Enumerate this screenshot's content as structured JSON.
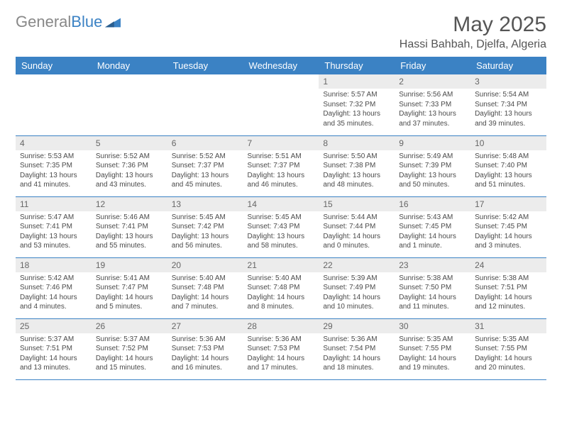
{
  "logo": {
    "text_part1": "General",
    "text_part2": "Blue"
  },
  "title": "May 2025",
  "location": "Hassi Bahbah, Djelfa, Algeria",
  "colors": {
    "header_bg": "#3b82c4",
    "header_text": "#ffffff",
    "day_number_bg": "#ececec",
    "body_text": "#4a4a4a",
    "row_divider": "#3b82c4",
    "logo_gray": "#888888",
    "logo_blue": "#3b82c4"
  },
  "typography": {
    "title_fontsize": 30,
    "location_fontsize": 16,
    "header_fontsize": 13,
    "day_number_fontsize": 12,
    "cell_fontsize": 10
  },
  "layout": {
    "columns": 7,
    "rows": 5,
    "first_day_column_index": 4
  },
  "weekdays": [
    "Sunday",
    "Monday",
    "Tuesday",
    "Wednesday",
    "Thursday",
    "Friday",
    "Saturday"
  ],
  "days": [
    {
      "n": 1,
      "sunrise": "5:57 AM",
      "sunset": "7:32 PM",
      "daylight": "13 hours and 35 minutes."
    },
    {
      "n": 2,
      "sunrise": "5:56 AM",
      "sunset": "7:33 PM",
      "daylight": "13 hours and 37 minutes."
    },
    {
      "n": 3,
      "sunrise": "5:54 AM",
      "sunset": "7:34 PM",
      "daylight": "13 hours and 39 minutes."
    },
    {
      "n": 4,
      "sunrise": "5:53 AM",
      "sunset": "7:35 PM",
      "daylight": "13 hours and 41 minutes."
    },
    {
      "n": 5,
      "sunrise": "5:52 AM",
      "sunset": "7:36 PM",
      "daylight": "13 hours and 43 minutes."
    },
    {
      "n": 6,
      "sunrise": "5:52 AM",
      "sunset": "7:37 PM",
      "daylight": "13 hours and 45 minutes."
    },
    {
      "n": 7,
      "sunrise": "5:51 AM",
      "sunset": "7:37 PM",
      "daylight": "13 hours and 46 minutes."
    },
    {
      "n": 8,
      "sunrise": "5:50 AM",
      "sunset": "7:38 PM",
      "daylight": "13 hours and 48 minutes."
    },
    {
      "n": 9,
      "sunrise": "5:49 AM",
      "sunset": "7:39 PM",
      "daylight": "13 hours and 50 minutes."
    },
    {
      "n": 10,
      "sunrise": "5:48 AM",
      "sunset": "7:40 PM",
      "daylight": "13 hours and 51 minutes."
    },
    {
      "n": 11,
      "sunrise": "5:47 AM",
      "sunset": "7:41 PM",
      "daylight": "13 hours and 53 minutes."
    },
    {
      "n": 12,
      "sunrise": "5:46 AM",
      "sunset": "7:41 PM",
      "daylight": "13 hours and 55 minutes."
    },
    {
      "n": 13,
      "sunrise": "5:45 AM",
      "sunset": "7:42 PM",
      "daylight": "13 hours and 56 minutes."
    },
    {
      "n": 14,
      "sunrise": "5:45 AM",
      "sunset": "7:43 PM",
      "daylight": "13 hours and 58 minutes."
    },
    {
      "n": 15,
      "sunrise": "5:44 AM",
      "sunset": "7:44 PM",
      "daylight": "14 hours and 0 minutes."
    },
    {
      "n": 16,
      "sunrise": "5:43 AM",
      "sunset": "7:45 PM",
      "daylight": "14 hours and 1 minute."
    },
    {
      "n": 17,
      "sunrise": "5:42 AM",
      "sunset": "7:45 PM",
      "daylight": "14 hours and 3 minutes."
    },
    {
      "n": 18,
      "sunrise": "5:42 AM",
      "sunset": "7:46 PM",
      "daylight": "14 hours and 4 minutes."
    },
    {
      "n": 19,
      "sunrise": "5:41 AM",
      "sunset": "7:47 PM",
      "daylight": "14 hours and 5 minutes."
    },
    {
      "n": 20,
      "sunrise": "5:40 AM",
      "sunset": "7:48 PM",
      "daylight": "14 hours and 7 minutes."
    },
    {
      "n": 21,
      "sunrise": "5:40 AM",
      "sunset": "7:48 PM",
      "daylight": "14 hours and 8 minutes."
    },
    {
      "n": 22,
      "sunrise": "5:39 AM",
      "sunset": "7:49 PM",
      "daylight": "14 hours and 10 minutes."
    },
    {
      "n": 23,
      "sunrise": "5:38 AM",
      "sunset": "7:50 PM",
      "daylight": "14 hours and 11 minutes."
    },
    {
      "n": 24,
      "sunrise": "5:38 AM",
      "sunset": "7:51 PM",
      "daylight": "14 hours and 12 minutes."
    },
    {
      "n": 25,
      "sunrise": "5:37 AM",
      "sunset": "7:51 PM",
      "daylight": "14 hours and 13 minutes."
    },
    {
      "n": 26,
      "sunrise": "5:37 AM",
      "sunset": "7:52 PM",
      "daylight": "14 hours and 15 minutes."
    },
    {
      "n": 27,
      "sunrise": "5:36 AM",
      "sunset": "7:53 PM",
      "daylight": "14 hours and 16 minutes."
    },
    {
      "n": 28,
      "sunrise": "5:36 AM",
      "sunset": "7:53 PM",
      "daylight": "14 hours and 17 minutes."
    },
    {
      "n": 29,
      "sunrise": "5:36 AM",
      "sunset": "7:54 PM",
      "daylight": "14 hours and 18 minutes."
    },
    {
      "n": 30,
      "sunrise": "5:35 AM",
      "sunset": "7:55 PM",
      "daylight": "14 hours and 19 minutes."
    },
    {
      "n": 31,
      "sunrise": "5:35 AM",
      "sunset": "7:55 PM",
      "daylight": "14 hours and 20 minutes."
    }
  ]
}
